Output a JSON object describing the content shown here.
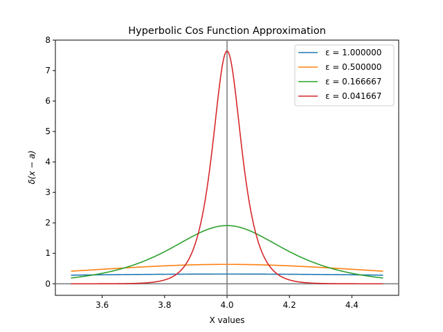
{
  "chart_data": {
    "type": "line",
    "title": "Hyperbolic Cos Function Approximation",
    "xlabel": "X values",
    "ylabel": "δ(x − a)",
    "xlim": [
      3.45,
      4.55
    ],
    "ylim": [
      -0.38,
      8.0
    ],
    "x_ticks": [
      3.6,
      3.8,
      4.0,
      4.2,
      4.4
    ],
    "x_tick_labels": [
      "3.6",
      "3.8",
      "4.0",
      "4.2",
      "4.4"
    ],
    "y_ticks": [
      0,
      1,
      2,
      3,
      4,
      5,
      6,
      7,
      8
    ],
    "y_tick_labels": [
      "0",
      "1",
      "2",
      "3",
      "4",
      "5",
      "6",
      "7",
      "8"
    ],
    "grid": false,
    "reference_lines": {
      "vertical_x": 4.0,
      "horizontal_y": 0,
      "color": "#808080"
    },
    "legend_position": "top-right",
    "formula": "1 / (pi * eps * cosh((x - a)/eps)), a = 4",
    "center_a": 4.0,
    "x_range": [
      3.5,
      4.5
    ],
    "series": [
      {
        "name": "ε = 1.000000",
        "epsilon": 1.0,
        "color": "#1f77b4"
      },
      {
        "name": "ε = 0.500000",
        "epsilon": 0.5,
        "color": "#ff7f0e"
      },
      {
        "name": "ε = 0.166667",
        "epsilon": 0.166667,
        "color": "#2ca02c"
      },
      {
        "name": "ε = 0.041667",
        "epsilon": 0.041667,
        "color": "#d62728"
      }
    ]
  }
}
